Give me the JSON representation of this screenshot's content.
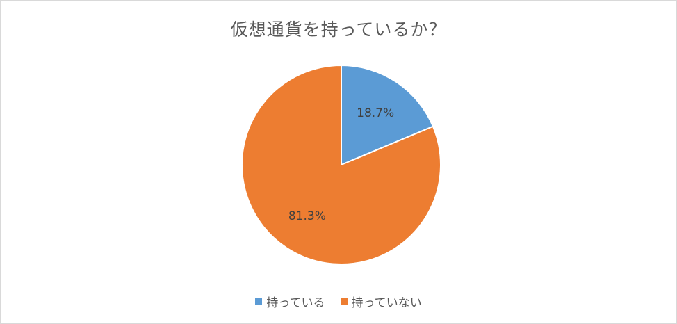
{
  "chart_data": {
    "type": "pie",
    "title": "仮想通貨を持っているか？",
    "categories": [
      "持っている",
      "持っていない"
    ],
    "values": [
      18.7,
      81.3
    ],
    "labels": [
      "18.7%",
      "81.3%"
    ],
    "colors": [
      "#5b9bd5",
      "#ed7d31"
    ],
    "legend_position": "bottom"
  }
}
